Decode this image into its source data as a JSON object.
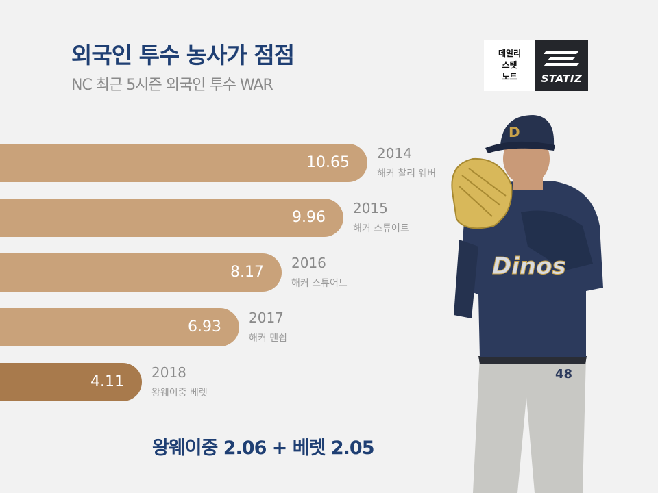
{
  "title": "외국인 투수 농사가 점점",
  "subtitle": "NC 최근 5시즌 외국인 투수 WAR",
  "logo": {
    "left_lines": [
      "데일리",
      "스탯",
      "노트"
    ],
    "brand": "STATIZ"
  },
  "footnote": "왕웨이중 2.06 + 베렛 2.05",
  "colors": {
    "bar": "#c9a27a",
    "bar_highlight": "#a87a4c",
    "title": "#1f3f73"
  },
  "chart_data": {
    "type": "bar",
    "orientation": "horizontal",
    "title": "외국인 투수 농사가 점점",
    "subtitle": "NC 최근 5시즌 외국인 투수 WAR",
    "categories": [
      "2014",
      "2015",
      "2016",
      "2017",
      "2018"
    ],
    "players": [
      "해커 찰리 웨버",
      "해커 스튜어트",
      "해커 스튜어트",
      "해커 맨쉽",
      "왕웨이중 베렛"
    ],
    "values": [
      10.65,
      9.96,
      8.17,
      6.93,
      4.11
    ],
    "value_labels": [
      "10.65",
      "9.96",
      "8.17",
      "6.93",
      "4.11"
    ],
    "highlight_index": 4,
    "grid": false,
    "legend": "none"
  }
}
